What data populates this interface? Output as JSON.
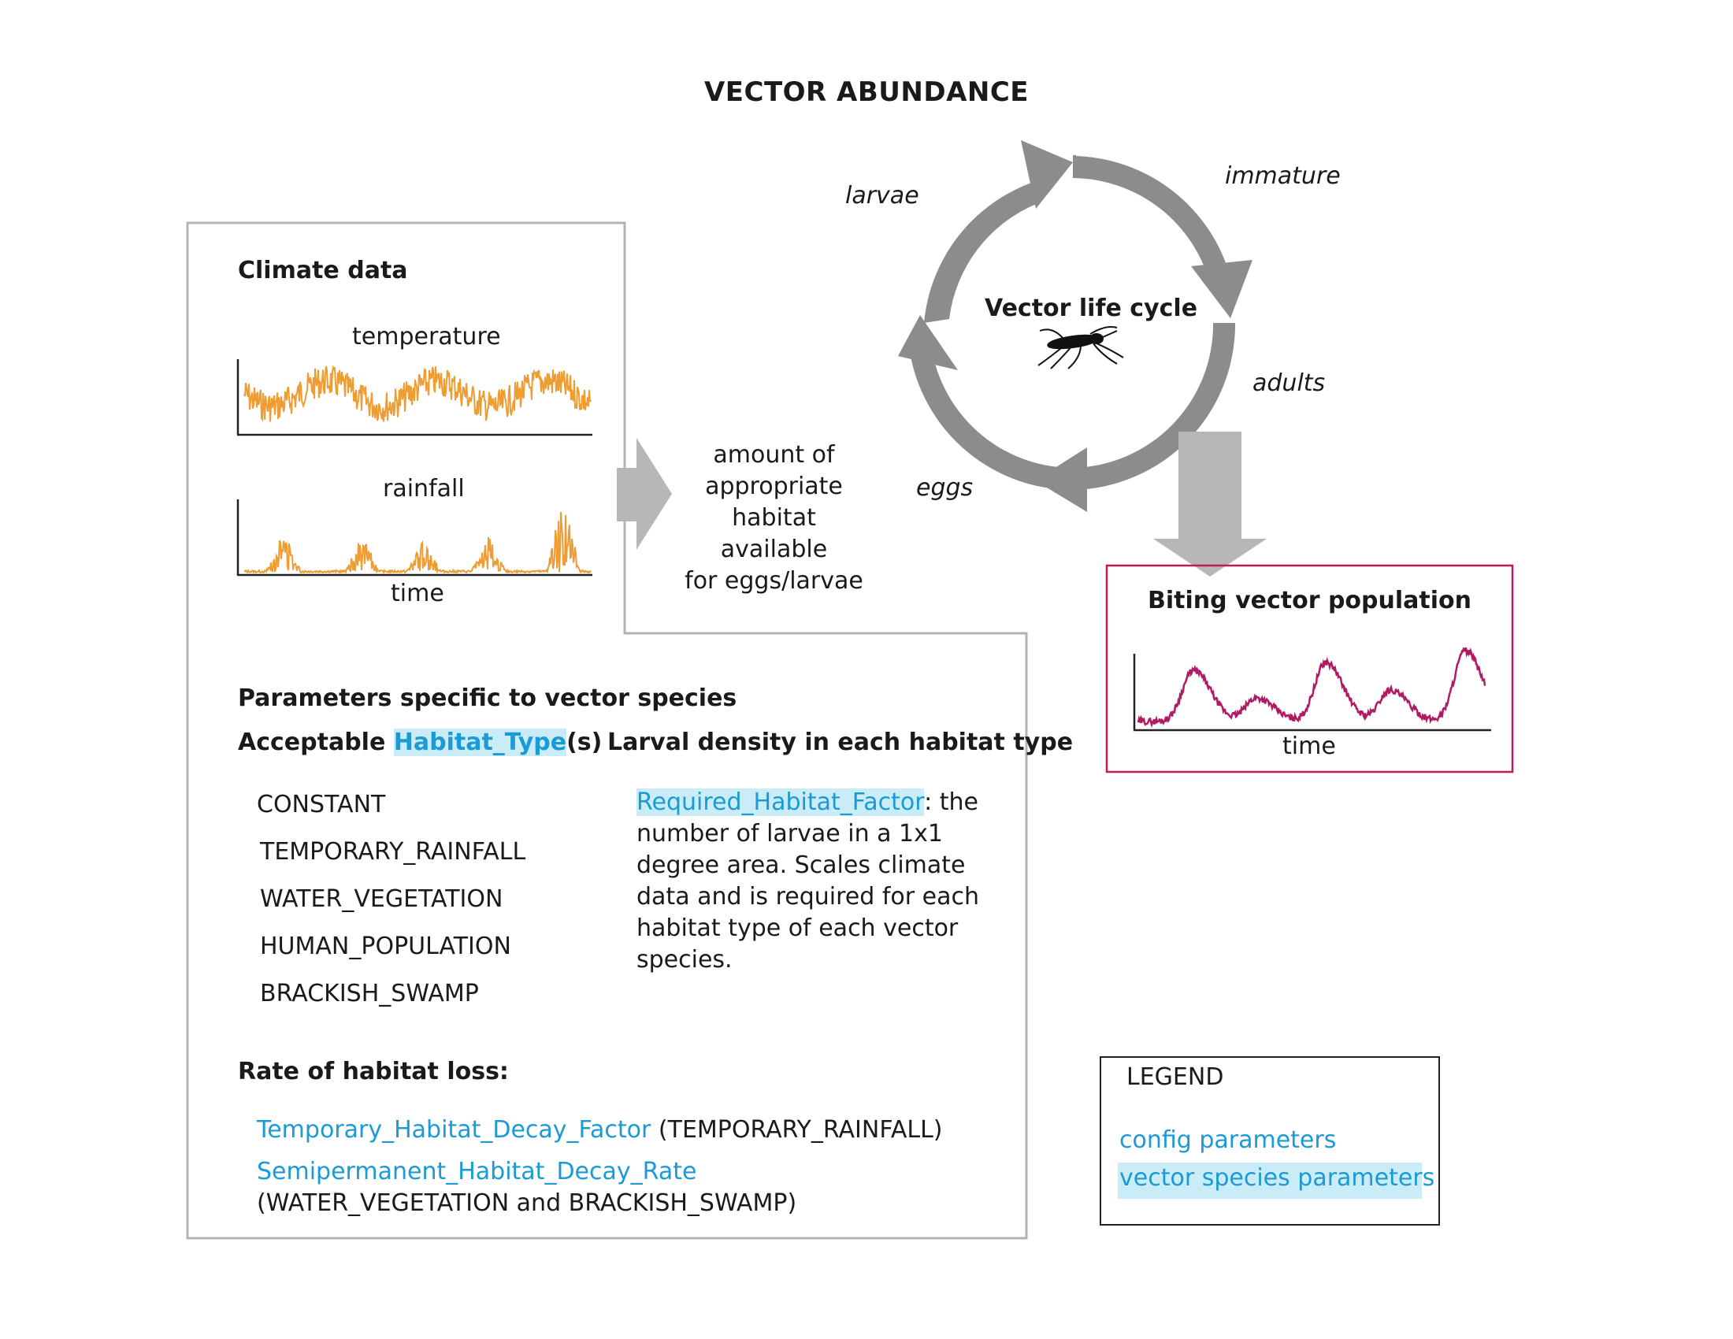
{
  "title": "VECTOR ABUNDANCE",
  "climate": {
    "heading": "Climate data",
    "temperature_label": "temperature",
    "rainfall_label": "rainfall",
    "time_label": "time",
    "series_color": "#ef9d33"
  },
  "arrow_text": [
    "amount of",
    "appropriate",
    "habitat available",
    "for eggs/larvae"
  ],
  "life_cycle": {
    "center_title": "Vector life cycle",
    "stages": {
      "larvae": "larvae",
      "immature": "immature",
      "adults": "adults",
      "eggs": "eggs"
    },
    "arrow_color": "#8c8c8c"
  },
  "biting": {
    "heading": "Biting vector population",
    "time_label": "time",
    "border_color": "#c2185b",
    "series_color": "#b01a62"
  },
  "parameters": {
    "heading": "Parameters specific to vector species",
    "habitat_label_pre": "Acceptable ",
    "habitat_param": "Habitat_Type",
    "habitat_label_post": "(s)",
    "habitat_types": [
      "CONSTANT",
      "TEMPORARY_RAINFALL",
      "WATER_VEGETATION",
      "HUMAN_POPULATION",
      "BRACKISH_SWAMP"
    ],
    "larval_heading": "Larval density in each habitat type",
    "larval_param": "Required_Habitat_Factor",
    "larval_desc_first": ": the",
    "larval_desc_lines": [
      "number of larvae in a 1x1",
      "degree area. Scales climate",
      "data and is required for each",
      "habitat type of each vector",
      "species."
    ],
    "loss_heading": "Rate of habitat loss:",
    "loss_param1": "Temporary_Habitat_Decay_Factor",
    "loss_param1_note": " (TEMPORARY_RAINFALL)",
    "loss_param2": "Semipermanent_Habitat_Decay_Rate",
    "loss_param2_note": "(WATER_VEGETATION and BRACKISH_SWAMP)"
  },
  "legend": {
    "title": "LEGEND",
    "config": "config parameters",
    "vector_species": "vector species parameters",
    "config_color": "#1b9ad6",
    "highlight_color": "#c9ecf7"
  }
}
